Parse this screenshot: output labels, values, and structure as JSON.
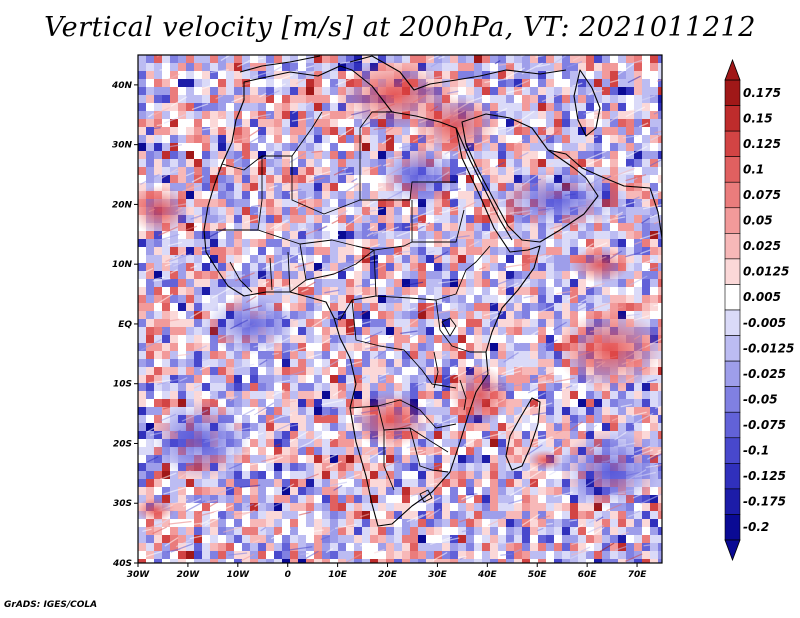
{
  "title": "Vertical velocity [m/s] at 200hPa, VT: 2021011212",
  "credit": "GrADS: IGES/COLA",
  "map": {
    "lon_range": [
      -30,
      75
    ],
    "lat_range": [
      -40,
      45
    ],
    "lon_ticks": [
      {
        "value": -30,
        "label": "30W"
      },
      {
        "value": -20,
        "label": "20W"
      },
      {
        "value": -10,
        "label": "10W"
      },
      {
        "value": 0,
        "label": "0"
      },
      {
        "value": 10,
        "label": "10E"
      },
      {
        "value": 20,
        "label": "20E"
      },
      {
        "value": 30,
        "label": "30E"
      },
      {
        "value": 40,
        "label": "40E"
      },
      {
        "value": 50,
        "label": "50E"
      },
      {
        "value": 60,
        "label": "60E"
      },
      {
        "value": 70,
        "label": "70E"
      }
    ],
    "lat_ticks": [
      {
        "value": 40,
        "label": "40N"
      },
      {
        "value": 30,
        "label": "30N"
      },
      {
        "value": 20,
        "label": "20N"
      },
      {
        "value": 10,
        "label": "10N"
      },
      {
        "value": 0,
        "label": "EQ"
      },
      {
        "value": -10,
        "label": "10S"
      },
      {
        "value": -20,
        "label": "20S"
      },
      {
        "value": -30,
        "label": "30S"
      },
      {
        "value": -40,
        "label": "40S"
      }
    ]
  },
  "colorbar": {
    "labels": [
      "0.175",
      "0.15",
      "0.125",
      "0.1",
      "0.075",
      "0.05",
      "0.025",
      "0.0125",
      "0.005",
      "-0.005",
      "-0.0125",
      "-0.025",
      "-0.05",
      "-0.075",
      "-0.1",
      "-0.125",
      "-0.175",
      "-0.2"
    ],
    "colors": [
      "#a01818",
      "#be2c2c",
      "#d24444",
      "#e06060",
      "#ea7c7c",
      "#f29a9a",
      "#f7b8b8",
      "#fbd8d8",
      "#ffffff",
      "#dadaf8",
      "#bcbcf2",
      "#9e9eea",
      "#8080e2",
      "#6262d8",
      "#4848cc",
      "#3030bc",
      "#1c1ca8",
      "#0a0a94"
    ]
  }
}
